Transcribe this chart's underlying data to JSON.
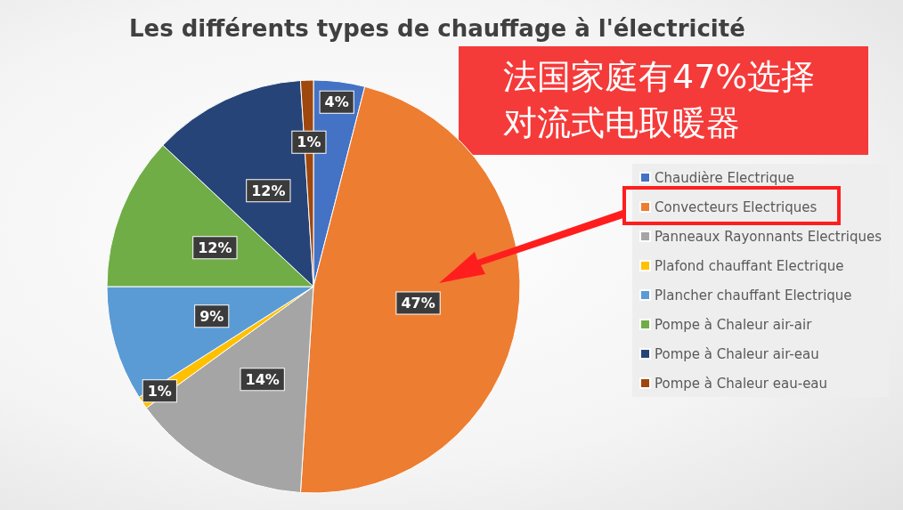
{
  "chart_data": {
    "type": "pie",
    "title": "Les différents types de chauffage à l'électricité",
    "categories": [
      "Chaudière Electrique",
      "Convecteurs Electriques",
      "Panneaux Rayonnants Electriques",
      "Plafond chauffant Electrique",
      "Plancher chauffant Electrique",
      "Pompe à Chaleur air-air",
      "Pompe à Chaleur air-eau",
      "Pompe à Chaleur eau-eau"
    ],
    "values": [
      4,
      47,
      14,
      1,
      9,
      12,
      12,
      1
    ],
    "value_labels": [
      "4%",
      "47%",
      "14%",
      "1%",
      "9%",
      "12%",
      "12%",
      "1%"
    ],
    "colors": [
      "#4472c4",
      "#ed7d31",
      "#a5a5a5",
      "#ffc000",
      "#5b9bd5",
      "#70ad47",
      "#264478",
      "#9e480e"
    ],
    "legend": "right",
    "annotations": [
      "法国家庭有47%选择对流式电取暖器"
    ]
  }
}
